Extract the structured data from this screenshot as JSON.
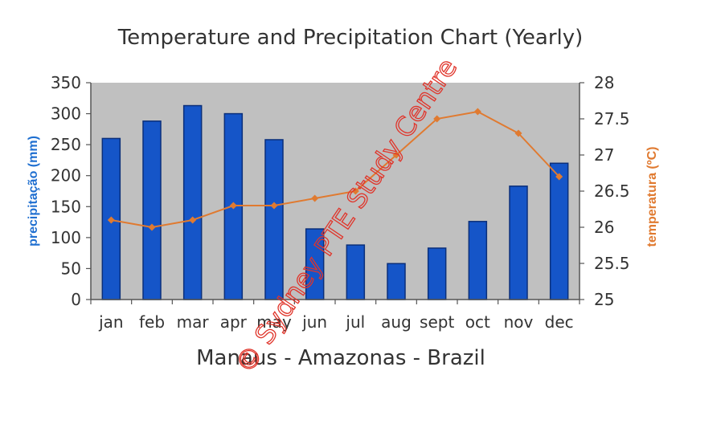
{
  "chart_data": {
    "type": "bar+line",
    "title": "Temperature and Precipitation Chart (Yearly)",
    "xlabel": "Manaus - Amazonas - Brazil",
    "ylabel_left": "precipitação (mm)",
    "ylabel_right": "temperatura (ºC)",
    "categories": [
      "jan",
      "feb",
      "mar",
      "apr",
      "may",
      "jun",
      "jul",
      "aug",
      "sept",
      "oct",
      "nov",
      "dec"
    ],
    "series": [
      {
        "type": "bar",
        "axis": "left",
        "values": [
          260,
          288,
          313,
          300,
          258,
          114,
          88,
          58,
          83,
          126,
          183,
          220
        ]
      },
      {
        "type": "line",
        "axis": "right",
        "values": [
          26.1,
          26.0,
          26.1,
          26.3,
          26.3,
          26.4,
          26.5,
          27.0,
          27.5,
          27.6,
          27.3,
          26.7
        ]
      }
    ],
    "ylim_left": [
      0,
      350
    ],
    "yticks_left": [
      "0",
      "50",
      "100",
      "150",
      "200",
      "250",
      "300",
      "350"
    ],
    "ylim_right": [
      25,
      28
    ],
    "yticks_right": [
      "25",
      "25.5",
      "26",
      "26.5",
      "27",
      "27.5",
      "28"
    ],
    "grid": false,
    "colors": {
      "plot_background": "#c0c0c0",
      "bar": "#1555c8",
      "bar_dark": "#0b2f7a",
      "line": "#e07a30",
      "left_axis_label": "#1f6fd0",
      "right_axis_label": "#e07a30",
      "text": "#333333"
    }
  },
  "watermark": {
    "text": "© Sydney PTE Study Centre",
    "color": "#e0342a"
  }
}
